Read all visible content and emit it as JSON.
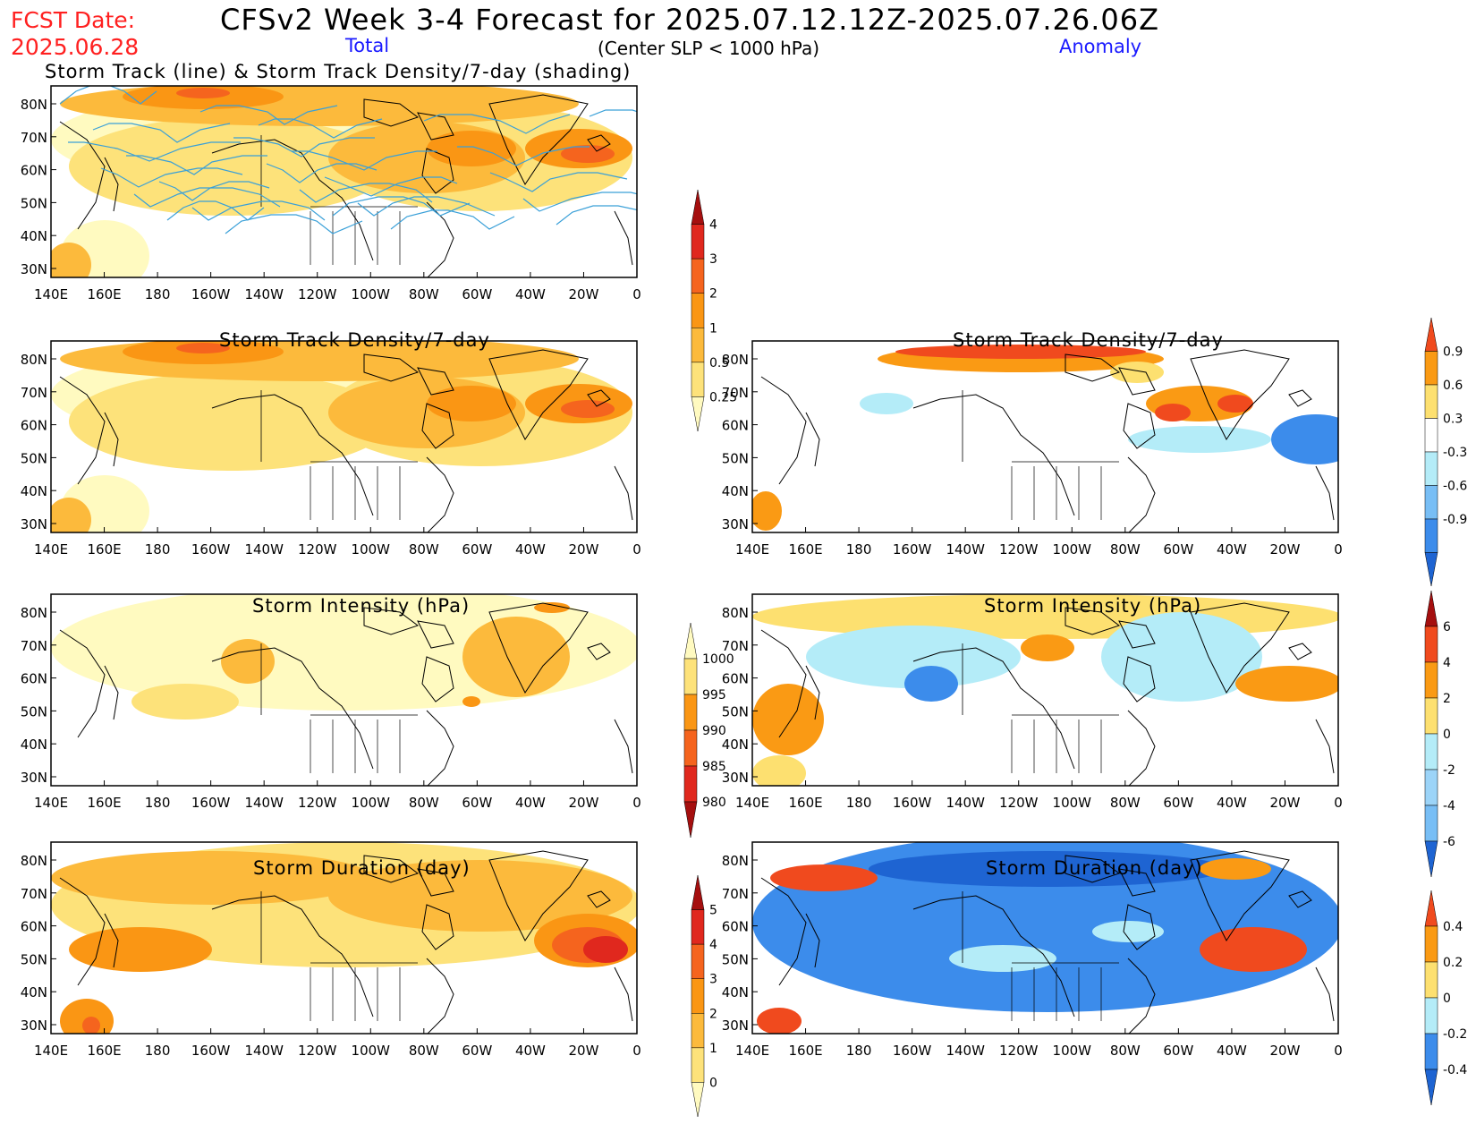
{
  "header": {
    "fcst_label": "FCST Date:",
    "fcst_date": "2025.06.28",
    "title": "CFSv2 Week 3-4 Forecast for 2025.07.12.12Z-2025.07.26.06Z",
    "total_label": "Total",
    "subtitle": "(Center SLP < 1000 hPa)",
    "anomaly_label": "Anomaly"
  },
  "axes": {
    "lat_labels": [
      "80N",
      "70N",
      "60N",
      "50N",
      "40N",
      "30N"
    ],
    "lon_labels": [
      "140E",
      "160E",
      "180",
      "160W",
      "140W",
      "120W",
      "100W",
      "80W",
      "60W",
      "40W",
      "20W",
      "0"
    ]
  },
  "panels": [
    {
      "id": "track-total",
      "title": "Storm Track (line) & Storm Track Density/7-day (shading)",
      "field": "total density",
      "overlay": "storm tracks",
      "track_color": "#3aa0d8"
    },
    {
      "id": "density-total",
      "title": "Storm Track Density/7-day",
      "field": "total density"
    },
    {
      "id": "density-anom",
      "title": "Storm Track Density/7-day",
      "field": "density anomaly"
    },
    {
      "id": "intensity-total",
      "title": "Storm Intensity (hPa)",
      "field": "total intensity"
    },
    {
      "id": "intensity-anom",
      "title": "Storm Intensity (hPa)",
      "field": "intensity anomaly"
    },
    {
      "id": "duration-total",
      "title": "Storm Duration (day)",
      "field": "total duration"
    },
    {
      "id": "duration-anom",
      "title": "Storm Duration (day)",
      "field": "duration anomaly"
    }
  ],
  "colorbars": {
    "density_total": {
      "labels": [
        "4",
        "3",
        "2",
        "1",
        "0.5",
        "0.25"
      ],
      "colors": [
        "#a50f0f",
        "#e0281e",
        "#f5641e",
        "#fa9614",
        "#fcba3c",
        "#fde27a",
        "#fffac0"
      ]
    },
    "density_anom": {
      "labels": [
        "0.9",
        "0.6",
        "0.3",
        "-0.3",
        "-0.6",
        "-0.9"
      ],
      "colors": [
        "#f04a1e",
        "#fa9a14",
        "#fde070",
        "#ffffff",
        "#b4ecf8",
        "#78bef5",
        "#3c8ceb",
        "#1e64d2"
      ]
    },
    "intensity_total": {
      "labels": [
        "1000",
        "995",
        "990",
        "985",
        "980"
      ],
      "colors": [
        "#fffac0",
        "#fde27a",
        "#fa9614",
        "#f5641e",
        "#e0281e",
        "#a50f0f"
      ]
    },
    "intensity_anom": {
      "labels": [
        "6",
        "4",
        "2",
        "0",
        "-2",
        "-4",
        "-6"
      ],
      "colors": [
        "#a50f0f",
        "#f04a1e",
        "#fa9a14",
        "#fde070",
        "#b4ecf8",
        "#9cd4f8",
        "#78bef5",
        "#1e64d2"
      ]
    },
    "duration_total": {
      "labels": [
        "5",
        "4",
        "3",
        "2",
        "1",
        "0"
      ],
      "colors": [
        "#a50f0f",
        "#e0281e",
        "#f5641e",
        "#fa9614",
        "#fcba3c",
        "#fde27a",
        "#fffac0"
      ]
    },
    "duration_anom": {
      "labels": [
        "0.4",
        "0.2",
        "0",
        "-0.2",
        "-0.4"
      ],
      "colors": [
        "#f04a1e",
        "#fa9a14",
        "#fde070",
        "#b4ecf8",
        "#3c8ceb",
        "#1e64d2"
      ]
    }
  }
}
